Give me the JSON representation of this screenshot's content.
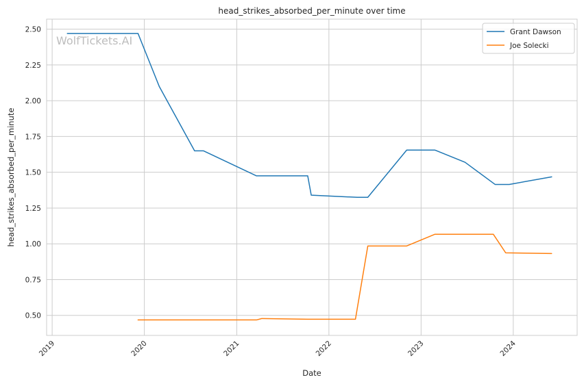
{
  "chart_data": {
    "type": "line",
    "title": "head_strikes_absorbed_per_minute over time",
    "xlabel": "Date",
    "ylabel": "head_strikes_absorbed_per_minute",
    "watermark": "WolfTickets.AI",
    "grid": true,
    "legend_position": "top-right",
    "xlim": [
      "2018-12-10",
      "2024-09-10"
    ],
    "ylim": [
      0.36,
      2.57
    ],
    "x_ticks": [
      "2019-01-01",
      "2020-01-01",
      "2021-01-01",
      "2022-01-01",
      "2023-01-01",
      "2024-01-01"
    ],
    "x_tick_labels": [
      "2019",
      "2020",
      "2021",
      "2022",
      "2023",
      "2024"
    ],
    "y_ticks": [
      0.5,
      0.75,
      1.0,
      1.25,
      1.5,
      1.75,
      2.0,
      2.25,
      2.5
    ],
    "y_tick_labels": [
      "0.50",
      "0.75",
      "1.00",
      "1.25",
      "1.50",
      "1.75",
      "2.00",
      "2.25",
      "2.50"
    ],
    "series": [
      {
        "name": "Grant Dawson",
        "color": "#1f77b4",
        "points": [
          {
            "x": "2019-03-02",
            "y": 2.47
          },
          {
            "x": "2019-12-07",
            "y": 2.47
          },
          {
            "x": "2020-02-29",
            "y": 2.1
          },
          {
            "x": "2020-07-18",
            "y": 1.65
          },
          {
            "x": "2020-08-22",
            "y": 1.65
          },
          {
            "x": "2021-03-20",
            "y": 1.475
          },
          {
            "x": "2021-10-09",
            "y": 1.475
          },
          {
            "x": "2021-10-23",
            "y": 1.34
          },
          {
            "x": "2022-04-23",
            "y": 1.325
          },
          {
            "x": "2022-06-04",
            "y": 1.325
          },
          {
            "x": "2022-11-05",
            "y": 1.655
          },
          {
            "x": "2023-02-25",
            "y": 1.655
          },
          {
            "x": "2023-06-24",
            "y": 1.57
          },
          {
            "x": "2023-10-21",
            "y": 1.415
          },
          {
            "x": "2023-12-16",
            "y": 1.415
          },
          {
            "x": "2024-06-01",
            "y": 1.468
          }
        ]
      },
      {
        "name": "Joe Solecki",
        "color": "#ff7f0e",
        "points": [
          {
            "x": "2019-12-07",
            "y": 0.468
          },
          {
            "x": "2021-03-20",
            "y": 0.468
          },
          {
            "x": "2021-04-10",
            "y": 0.478
          },
          {
            "x": "2021-10-09",
            "y": 0.473
          },
          {
            "x": "2022-04-16",
            "y": 0.473
          },
          {
            "x": "2022-06-04",
            "y": 0.985
          },
          {
            "x": "2022-11-05",
            "y": 0.985
          },
          {
            "x": "2023-02-25",
            "y": 1.067
          },
          {
            "x": "2023-10-14",
            "y": 1.067
          },
          {
            "x": "2023-12-02",
            "y": 0.937
          },
          {
            "x": "2024-06-01",
            "y": 0.932
          }
        ]
      }
    ]
  }
}
